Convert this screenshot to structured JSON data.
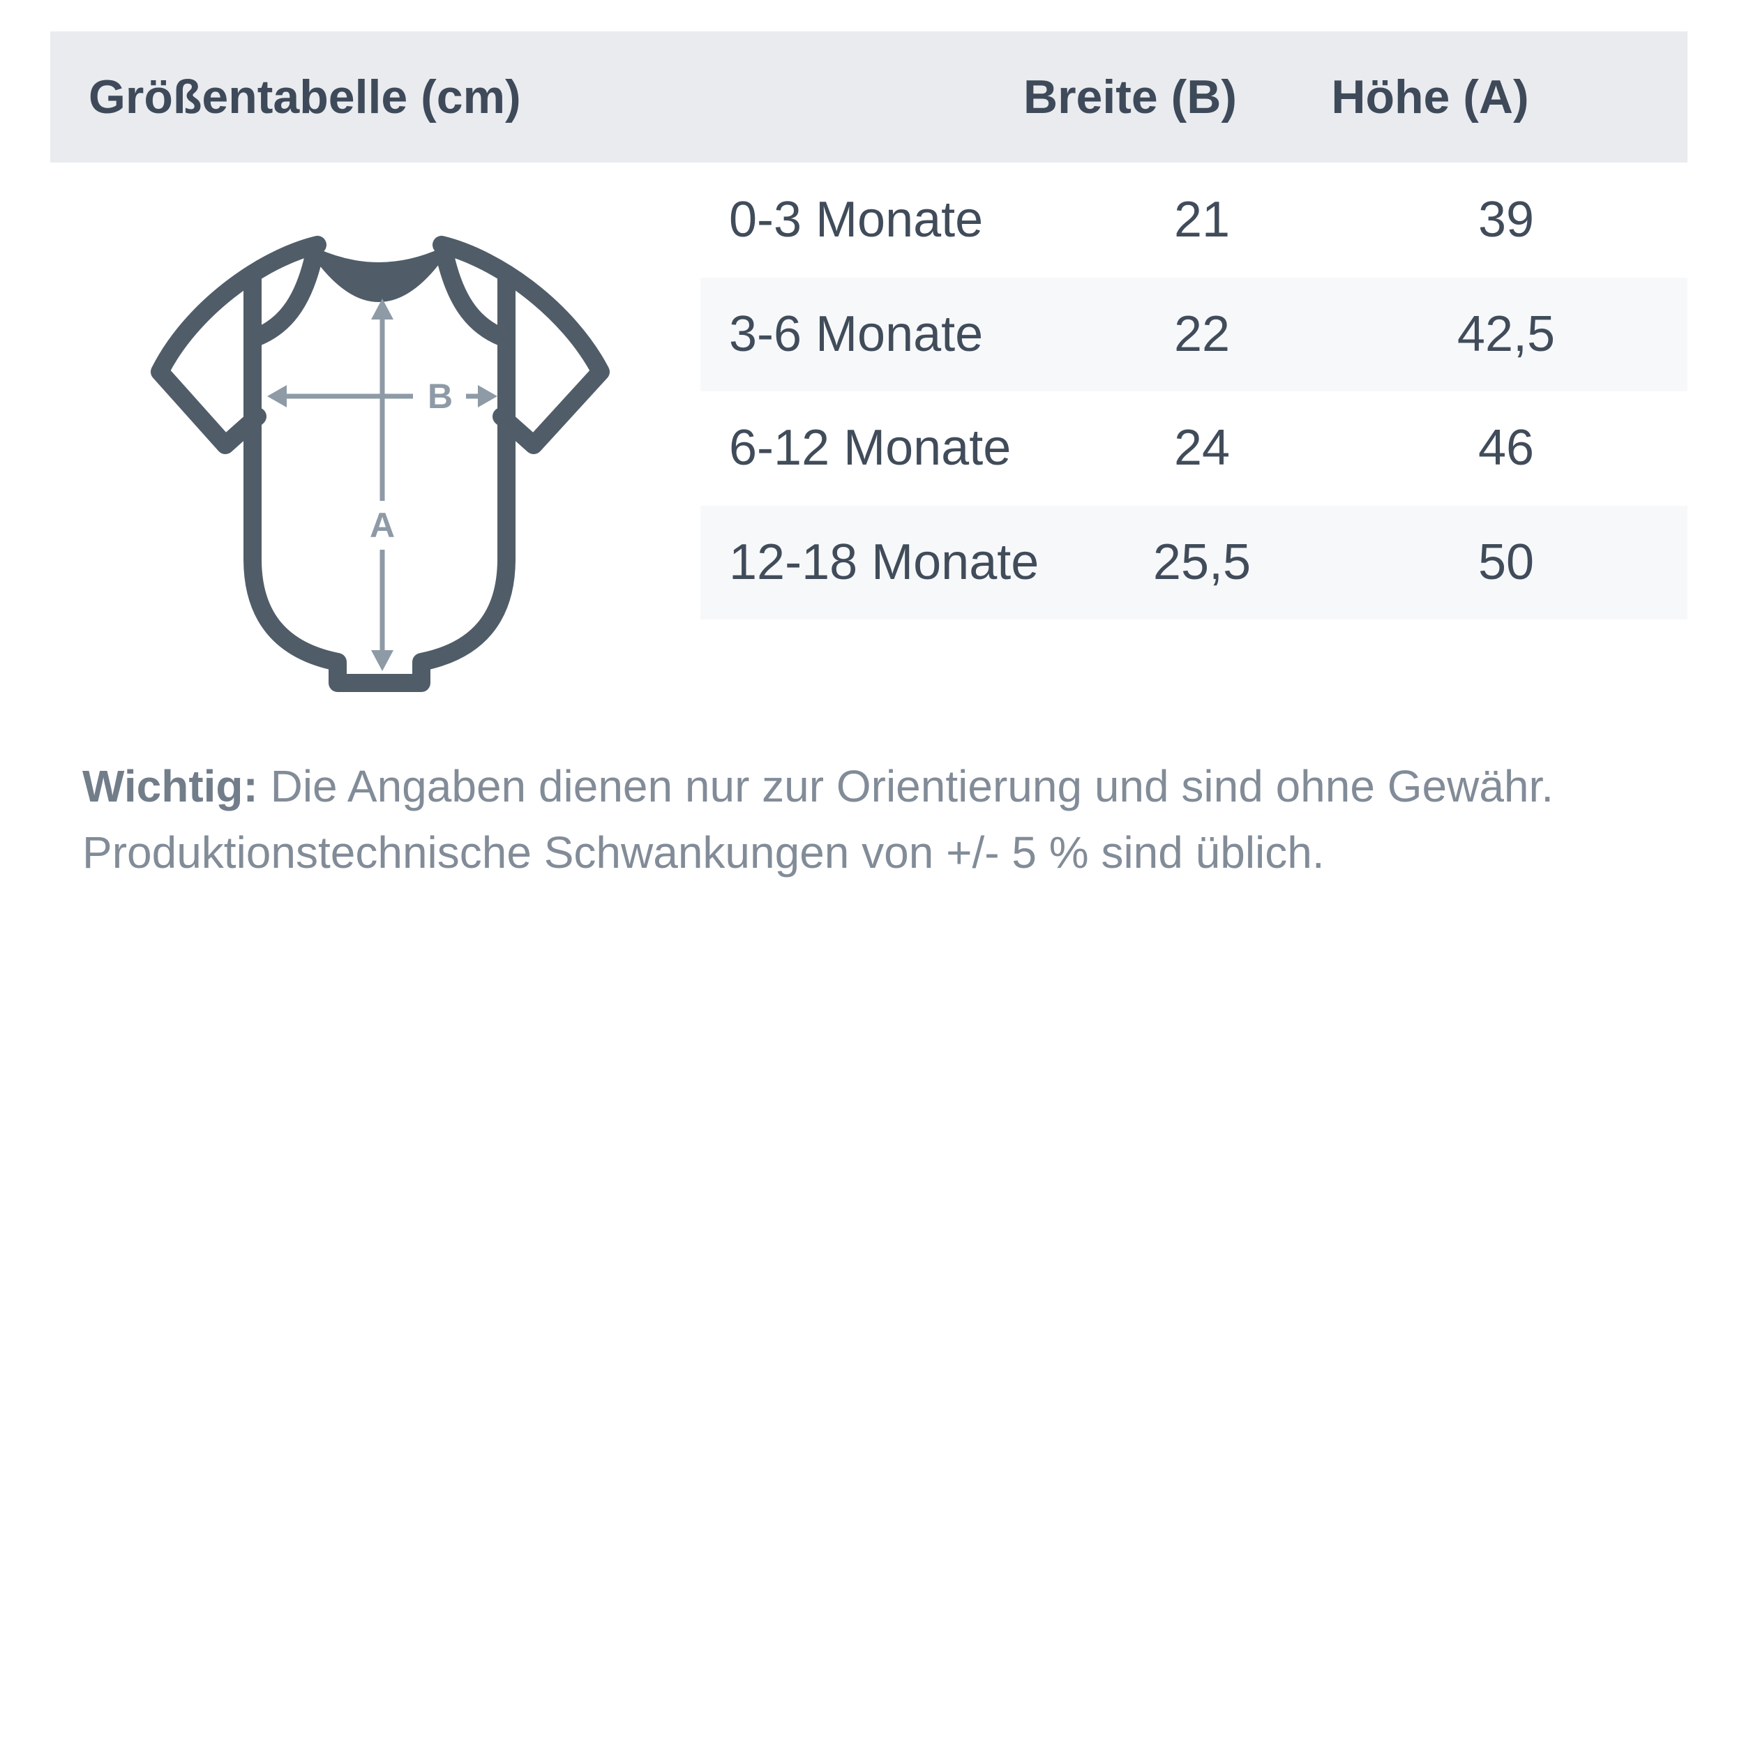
{
  "table": {
    "title": "Größentabelle (cm)",
    "columns": {
      "breite": "Breite (B)",
      "hoehe": "Höhe (A)"
    },
    "rows": [
      {
        "label": "0-3 Monate",
        "breite": "21",
        "hoehe": "39"
      },
      {
        "label": "3-6 Monate",
        "breite": "22",
        "hoehe": "42,5"
      },
      {
        "label": "6-12 Monate",
        "breite": "24",
        "hoehe": "46"
      },
      {
        "label": "12-18 Monate",
        "breite": "25,5",
        "hoehe": "50"
      }
    ]
  },
  "diagram": {
    "width_label": "B",
    "height_label": "A"
  },
  "note": {
    "bold": "Wichtig:",
    "line1": "Die Angaben dienen nur zur Orientierung und sind ohne Gewähr.",
    "line2": "Produktionstechnische Schwankungen von +/- 5 % sind üblich."
  },
  "colors": {
    "header_bg": "#e9ebef",
    "stripe_bg": "#f7f8fa",
    "header_text": "#3e4a59",
    "row_text": "#414c5a",
    "note_text": "#828c98",
    "outline": "#505d68",
    "arrow": "#8e9aa6"
  }
}
